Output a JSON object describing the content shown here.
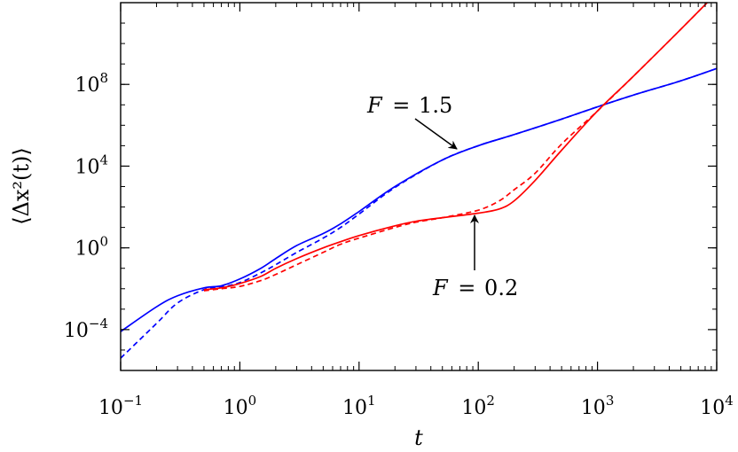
{
  "chart_data": {
    "type": "line",
    "title": "",
    "xlabel": "t",
    "ylabel": "⟨Δx²(t)⟩",
    "x_scale": "log",
    "y_scale": "log",
    "xlim": [
      0.1,
      10000
    ],
    "ylim": [
      1e-06,
      1000000000000
    ],
    "x_ticks": [
      {
        "value": 0.1,
        "base": "10",
        "exp": "−1"
      },
      {
        "value": 1,
        "base": "10",
        "exp": "0"
      },
      {
        "value": 10,
        "base": "10",
        "exp": "1"
      },
      {
        "value": 100,
        "base": "10",
        "exp": "2"
      },
      {
        "value": 1000,
        "base": "10",
        "exp": "3"
      },
      {
        "value": 10000,
        "base": "10",
        "exp": "4"
      }
    ],
    "y_ticks": [
      {
        "value": 0.0001,
        "base": "10",
        "exp": "−4"
      },
      {
        "value": 1,
        "base": "10",
        "exp": "0"
      },
      {
        "value": 10000,
        "base": "10",
        "exp": "4"
      },
      {
        "value": 100000000,
        "base": "10",
        "exp": "8"
      }
    ],
    "grid": false,
    "series": [
      {
        "color": "#0000ff",
        "style": "solid",
        "x": [
          0.1,
          0.2,
          0.3,
          0.5,
          0.7,
          1,
          1.5,
          2,
          3,
          5,
          7,
          10,
          20,
          50,
          100,
          200,
          500,
          1000,
          2000,
          5000,
          10000
        ],
        "y": [
          8e-05,
          0.0013,
          0.0045,
          0.011,
          0.014,
          0.03,
          0.1,
          0.3,
          1.3,
          5,
          15,
          60,
          1000,
          20000,
          100000,
          350000,
          2000000,
          8000000,
          30000000,
          150000000,
          600000000
        ]
      },
      {
        "color": "#0000ff",
        "style": "dashed",
        "x": [
          0.1,
          0.2,
          0.3,
          0.5,
          0.7,
          1,
          1.5,
          2,
          3,
          5,
          7,
          10,
          20,
          50,
          100,
          200,
          500,
          1000,
          2000,
          5000,
          10000
        ],
        "y": [
          4e-06,
          0.0002,
          0.002,
          0.009,
          0.012,
          0.02,
          0.06,
          0.15,
          0.6,
          3,
          10,
          45,
          900,
          20000,
          100000,
          350000,
          2000000,
          8000000,
          30000000,
          150000000,
          600000000
        ]
      },
      {
        "color": "#ff0000",
        "style": "solid",
        "x": [
          0.5,
          0.7,
          1,
          1.5,
          2,
          3,
          5,
          7,
          10,
          20,
          30,
          50,
          100,
          150,
          200,
          300,
          500,
          1000,
          2000,
          5000,
          10000
        ],
        "y": [
          0.009,
          0.011,
          0.018,
          0.04,
          0.1,
          0.3,
          1,
          2,
          4,
          12,
          20,
          30,
          50,
          80,
          200,
          2000,
          60000,
          5000000,
          250000000,
          50000000000,
          3000000000000
        ]
      },
      {
        "color": "#ff0000",
        "style": "dashed",
        "x": [
          0.5,
          0.7,
          1,
          1.5,
          2,
          3,
          5,
          7,
          10,
          20,
          30,
          50,
          100,
          150,
          200,
          300,
          500,
          1000,
          2000,
          5000,
          10000
        ],
        "y": [
          0.008,
          0.01,
          0.013,
          0.025,
          0.05,
          0.15,
          0.6,
          1.5,
          3,
          10,
          18,
          30,
          70,
          200,
          700,
          4500,
          120000,
          5000000,
          250000000,
          50000000000,
          3000000000000
        ]
      }
    ],
    "annotations": [
      {
        "label": "F = 1.5",
        "text_at": [
          4.5,
          80000000
        ],
        "arrow_tip": [
          80,
          40000
        ]
      },
      {
        "label": "F = 0.2",
        "text_at": [
          30,
          0.0
        ],
        "arrow_tip": [
          90,
          50
        ]
      }
    ],
    "annotation_text": {
      "a1_var": "F",
      "a1_val": "1.5",
      "a2_var": "F",
      "a2_val": "0.2"
    }
  }
}
